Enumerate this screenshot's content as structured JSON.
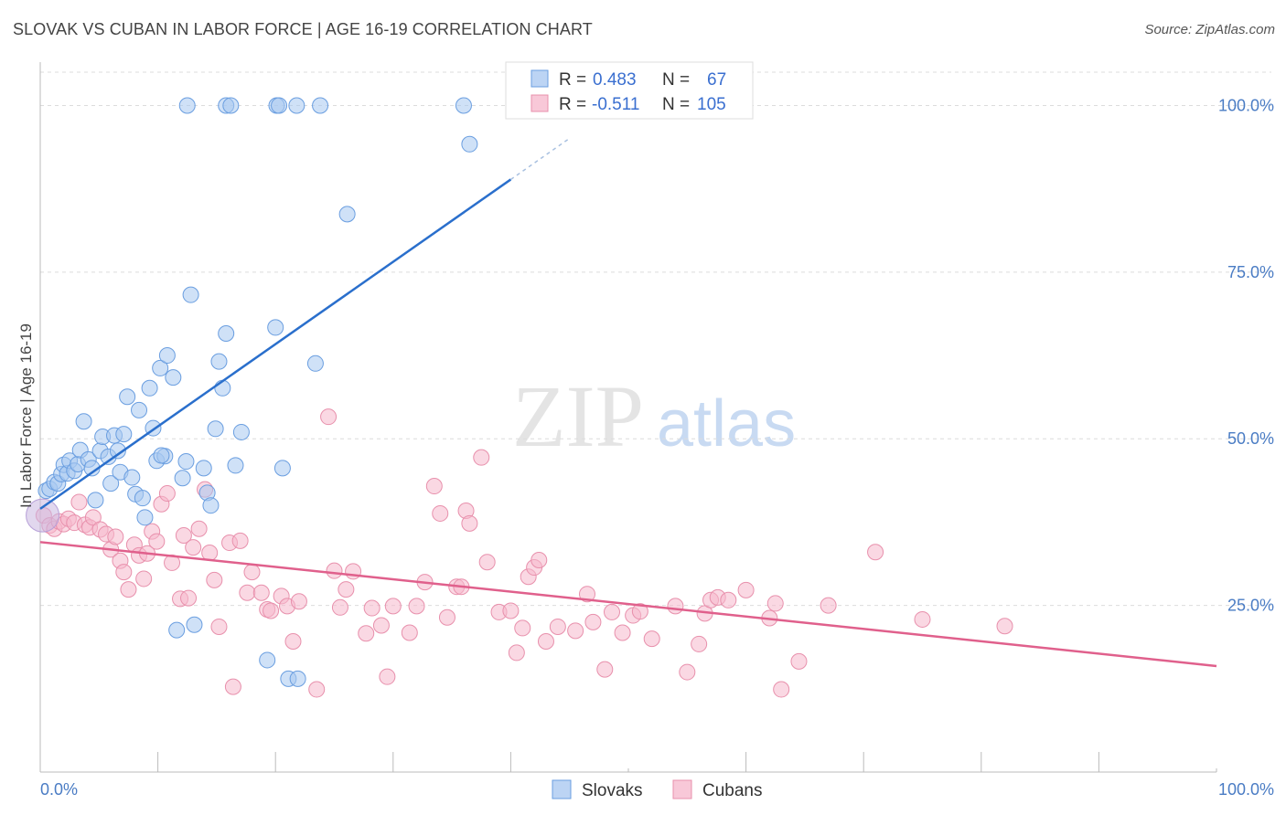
{
  "header": {
    "title": "SLOVAK VS CUBAN IN LABOR FORCE | AGE 16-19 CORRELATION CHART",
    "source": "Source: ZipAtlas.com"
  },
  "watermark": {
    "zip": "ZIP",
    "atlas": "atlas"
  },
  "legend": {
    "slovaks": {
      "r_label": "R =",
      "r_value": "0.483",
      "n_label": "N =",
      "n_value": "67"
    },
    "cubans": {
      "r_label": "R =",
      "r_value": "-0.511",
      "n_label": "N =",
      "n_value": "105"
    }
  },
  "bottom_legend": {
    "slovaks": "Slovaks",
    "cubans": "Cubans"
  },
  "colors": {
    "slovaks_fill": "#a8c8f0",
    "slovaks_stroke": "#6a9ee0",
    "slovaks_line": "#2a6fcc",
    "cubans_fill": "#f5b8cc",
    "cubans_stroke": "#e890ac",
    "cubans_line": "#e0608c",
    "axis_label": "#4a7cc4"
  },
  "chart_data": {
    "type": "scatter",
    "title": "SLOVAK VS CUBAN IN LABOR FORCE | AGE 16-19 CORRELATION CHART",
    "xlabel": "",
    "ylabel": "In Labor Force | Age 16-19",
    "xlim": [
      0,
      100
    ],
    "ylim": [
      0,
      105
    ],
    "x_tick_labels": [
      "0.0%",
      "100.0%"
    ],
    "y_ticks": [
      25,
      50,
      75,
      100
    ],
    "y_tick_labels": [
      "25.0%",
      "50.0%",
      "75.0%",
      "100.0%"
    ],
    "grid": true,
    "legend_position": "top-center",
    "series": [
      {
        "name": "Slovaks",
        "r": 0.483,
        "n": 67,
        "trend": {
          "x": [
            0,
            40
          ],
          "y": [
            39.5,
            88.9
          ]
        },
        "points": [
          [
            0.5,
            42.2
          ],
          [
            0.8,
            42.5
          ],
          [
            1.2,
            43.5
          ],
          [
            1.5,
            43.3
          ],
          [
            1.8,
            44.7
          ],
          [
            2.0,
            46.1
          ],
          [
            2.3,
            44.8
          ],
          [
            2.5,
            46.7
          ],
          [
            2.9,
            45.2
          ],
          [
            3.2,
            46.2
          ],
          [
            3.4,
            48.3
          ],
          [
            3.7,
            52.6
          ],
          [
            4.1,
            46.9
          ],
          [
            4.4,
            45.6
          ],
          [
            4.7,
            40.8
          ],
          [
            5.1,
            48.2
          ],
          [
            5.3,
            50.3
          ],
          [
            5.8,
            47.3
          ],
          [
            6.0,
            43.3
          ],
          [
            6.3,
            50.5
          ],
          [
            6.6,
            48.2
          ],
          [
            6.8,
            45.0
          ],
          [
            7.1,
            50.7
          ],
          [
            7.4,
            56.3
          ],
          [
            7.8,
            44.2
          ],
          [
            8.1,
            41.7
          ],
          [
            8.4,
            54.3
          ],
          [
            8.7,
            41.1
          ],
          [
            8.9,
            38.2
          ],
          [
            9.3,
            57.6
          ],
          [
            9.6,
            51.6
          ],
          [
            9.9,
            46.7
          ],
          [
            10.2,
            60.6
          ],
          [
            10.6,
            47.4
          ],
          [
            10.8,
            62.5
          ],
          [
            10.3,
            47.5
          ],
          [
            11.3,
            59.2
          ],
          [
            11.6,
            21.3
          ],
          [
            12.1,
            44.1
          ],
          [
            12.4,
            46.6
          ],
          [
            12.8,
            71.6
          ],
          [
            13.1,
            22.1
          ],
          [
            13.9,
            45.6
          ],
          [
            14.2,
            41.9
          ],
          [
            14.5,
            40.0
          ],
          [
            14.9,
            51.5
          ],
          [
            15.2,
            61.6
          ],
          [
            15.5,
            57.6
          ],
          [
            15.8,
            65.8
          ],
          [
            16.6,
            46.0
          ],
          [
            17.1,
            51.0
          ],
          [
            19.3,
            16.8
          ],
          [
            20.0,
            66.7
          ],
          [
            20.6,
            45.6
          ],
          [
            21.1,
            14.0
          ],
          [
            21.9,
            14.0
          ],
          [
            23.4,
            61.3
          ],
          [
            26.1,
            83.7
          ],
          [
            36.5,
            94.2
          ],
          [
            12.5,
            100
          ],
          [
            15.8,
            100
          ],
          [
            16.2,
            100
          ],
          [
            20.1,
            100
          ],
          [
            20.3,
            100
          ],
          [
            21.8,
            100
          ],
          [
            23.8,
            100
          ],
          [
            36.0,
            100
          ]
        ]
      },
      {
        "name": "Cubans",
        "r": -0.511,
        "n": 105,
        "trend": {
          "x": [
            0,
            100
          ],
          "y": [
            34.5,
            15.9
          ]
        },
        "points": [
          [
            0.3,
            38.5
          ],
          [
            0.8,
            37.0
          ],
          [
            1.2,
            36.5
          ],
          [
            1.6,
            37.6
          ],
          [
            2.0,
            37.2
          ],
          [
            2.4,
            38.0
          ],
          [
            2.9,
            37.4
          ],
          [
            3.3,
            40.5
          ],
          [
            3.8,
            37.1
          ],
          [
            4.2,
            36.7
          ],
          [
            4.5,
            38.2
          ],
          [
            5.1,
            36.4
          ],
          [
            5.6,
            35.7
          ],
          [
            6.0,
            33.4
          ],
          [
            6.4,
            35.3
          ],
          [
            6.8,
            31.7
          ],
          [
            7.1,
            30.0
          ],
          [
            7.5,
            27.4
          ],
          [
            8.0,
            34.1
          ],
          [
            8.4,
            32.5
          ],
          [
            8.8,
            29.0
          ],
          [
            9.1,
            32.8
          ],
          [
            9.5,
            36.1
          ],
          [
            9.9,
            34.6
          ],
          [
            10.3,
            40.2
          ],
          [
            10.8,
            41.8
          ],
          [
            11.2,
            31.4
          ],
          [
            11.9,
            26.0
          ],
          [
            12.2,
            35.5
          ],
          [
            12.6,
            26.1
          ],
          [
            13.0,
            33.7
          ],
          [
            13.5,
            36.5
          ],
          [
            14.0,
            42.4
          ],
          [
            14.4,
            32.9
          ],
          [
            14.8,
            28.8
          ],
          [
            15.2,
            21.8
          ],
          [
            16.1,
            34.4
          ],
          [
            16.4,
            12.8
          ],
          [
            17.0,
            34.7
          ],
          [
            17.6,
            26.9
          ],
          [
            18.0,
            30.0
          ],
          [
            18.8,
            26.9
          ],
          [
            19.3,
            24.4
          ],
          [
            19.6,
            24.2
          ],
          [
            20.5,
            26.4
          ],
          [
            21.0,
            24.9
          ],
          [
            21.5,
            19.6
          ],
          [
            22.0,
            25.6
          ],
          [
            23.5,
            12.4
          ],
          [
            24.5,
            53.3
          ],
          [
            25.0,
            30.2
          ],
          [
            25.5,
            24.7
          ],
          [
            26.0,
            27.4
          ],
          [
            26.6,
            30.1
          ],
          [
            27.7,
            20.8
          ],
          [
            28.2,
            24.6
          ],
          [
            29.0,
            22.0
          ],
          [
            29.5,
            14.3
          ],
          [
            30.0,
            24.9
          ],
          [
            31.4,
            20.9
          ],
          [
            32.0,
            24.9
          ],
          [
            32.7,
            28.5
          ],
          [
            33.5,
            42.9
          ],
          [
            34.0,
            38.8
          ],
          [
            34.6,
            23.2
          ],
          [
            35.4,
            27.8
          ],
          [
            35.8,
            27.8
          ],
          [
            36.2,
            39.2
          ],
          [
            36.5,
            37.3
          ],
          [
            37.5,
            47.2
          ],
          [
            38.0,
            31.5
          ],
          [
            39.0,
            24.0
          ],
          [
            40.0,
            24.2
          ],
          [
            40.5,
            17.9
          ],
          [
            41.0,
            21.6
          ],
          [
            41.5,
            29.3
          ],
          [
            42.0,
            30.7
          ],
          [
            42.4,
            31.8
          ],
          [
            43.0,
            19.6
          ],
          [
            44.0,
            21.8
          ],
          [
            45.5,
            21.2
          ],
          [
            46.5,
            26.7
          ],
          [
            47.0,
            22.5
          ],
          [
            48.0,
            15.4
          ],
          [
            48.6,
            24.0
          ],
          [
            49.5,
            20.9
          ],
          [
            50.4,
            23.5
          ],
          [
            51.0,
            24.1
          ],
          [
            52.0,
            20.0
          ],
          [
            54.0,
            24.9
          ],
          [
            55.0,
            15.0
          ],
          [
            56.0,
            19.2
          ],
          [
            56.5,
            23.8
          ],
          [
            57.0,
            25.8
          ],
          [
            57.6,
            26.2
          ],
          [
            58.5,
            25.8
          ],
          [
            60.0,
            27.3
          ],
          [
            62.0,
            23.1
          ],
          [
            62.5,
            25.3
          ],
          [
            63.0,
            12.4
          ],
          [
            64.5,
            16.6
          ],
          [
            67.0,
            25.0
          ],
          [
            71.0,
            33.0
          ],
          [
            75.0,
            22.9
          ],
          [
            82.0,
            21.9
          ]
        ]
      }
    ]
  }
}
